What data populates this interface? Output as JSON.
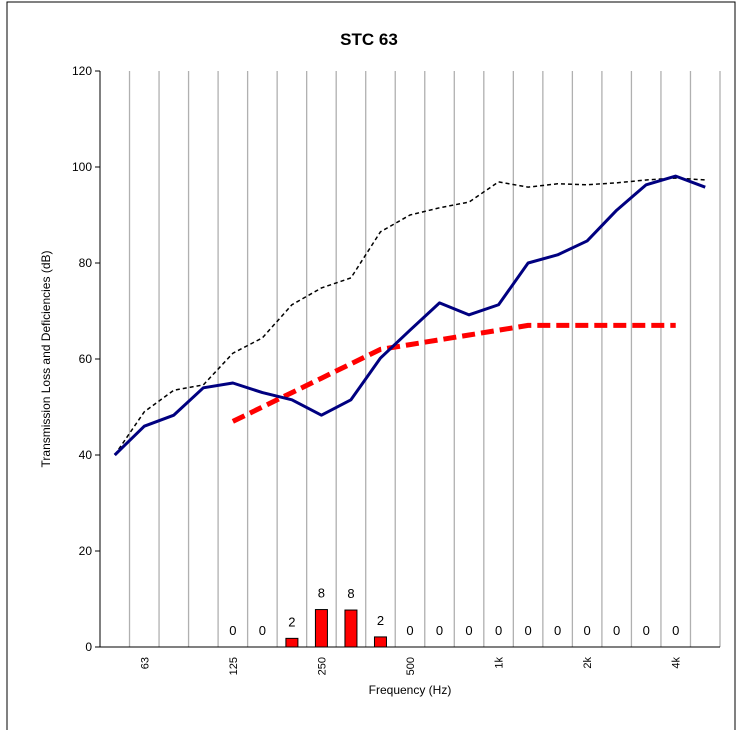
{
  "chart_data": {
    "type": "line",
    "title": "STC 63",
    "x_label": "Frequency (Hz)",
    "y_label": "Transmission Loss and Deficiencies (dB)",
    "categories": [
      null,
      "63",
      null,
      null,
      "125",
      null,
      null,
      "250",
      null,
      null,
      "500",
      null,
      null,
      "1k",
      null,
      null,
      "2k",
      null,
      null,
      "4k",
      null
    ],
    "ylim": [
      0,
      120
    ],
    "yticks": [
      0,
      20,
      40,
      60,
      80,
      100,
      120
    ],
    "vertical_grid": true,
    "series": [
      {
        "color": "#000000",
        "line_style": "dotted",
        "width": 1.5,
        "values": [
          40,
          49,
          53.5,
          54.6,
          61.2,
          64.4,
          71.3,
          74.8,
          76.9,
          86.5,
          90,
          91.5,
          92.7,
          96.9,
          95.8,
          96.5,
          96.3,
          96.7,
          97.3,
          97.7,
          97.3
        ]
      },
      {
        "color": "#ff0000",
        "line_style": "dashed",
        "width": 5,
        "values": [
          null,
          null,
          null,
          null,
          47,
          50,
          53,
          56,
          59,
          62,
          63,
          64,
          65,
          66,
          67,
          67,
          67,
          67,
          67,
          67,
          null
        ]
      },
      {
        "color": "#000080",
        "line_style": "solid",
        "width": 3,
        "values": [
          40,
          46,
          48.3,
          54,
          55,
          53,
          51.5,
          48.3,
          51.5,
          60.2,
          66,
          71.7,
          69.2,
          71.3,
          80,
          81.7,
          84.6,
          91,
          96.3,
          98.1,
          95.8
        ]
      }
    ],
    "bars": {
      "color": "#ff0000",
      "values": [
        null,
        null,
        null,
        null,
        0,
        0,
        1.8,
        7.8,
        7.7,
        2.1,
        0,
        0,
        0,
        0,
        0,
        0,
        0,
        0,
        0,
        0,
        null
      ],
      "value_labels": [
        null,
        null,
        null,
        null,
        "0",
        "0",
        "2",
        "8",
        "8",
        "2",
        "0",
        "0",
        "0",
        "0",
        "0",
        "0",
        "0",
        "0",
        "0",
        "0",
        null
      ]
    }
  }
}
